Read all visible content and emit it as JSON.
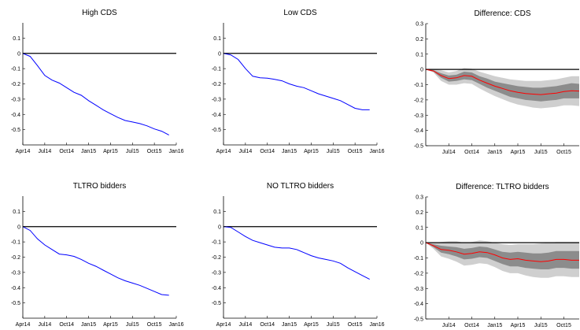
{
  "colors": {
    "line": "#0000ff",
    "diff_line": "#ff0000",
    "band_outer": "#cfcfcf",
    "band_inner": "#8c8c8c",
    "zero_line": "#000000"
  },
  "chart_data": [
    {
      "type": "line",
      "title": "High CDS",
      "x_ticks": [
        "Apr14",
        "Jul14",
        "Oct14",
        "Jan15",
        "Apr15",
        "Jul15",
        "Oct15",
        "Jan16"
      ],
      "y_ticks": [
        "0.1",
        "0",
        "-0.1",
        "-0.2",
        "-0.3",
        "-0.4",
        "-0.5"
      ],
      "ylim": [
        -0.6,
        0.2
      ],
      "x": [
        "Apr14",
        "May14",
        "Jun14",
        "Jul14",
        "Aug14",
        "Sep14",
        "Oct14",
        "Nov14",
        "Dec14",
        "Jan15",
        "Feb15",
        "Mar15",
        "Apr15",
        "May15",
        "Jun15",
        "Jul15",
        "Aug15",
        "Sep15",
        "Oct15",
        "Nov15",
        "Dec15"
      ],
      "series": [
        {
          "values": [
            0,
            -0.02,
            -0.08,
            -0.145,
            -0.175,
            -0.195,
            -0.225,
            -0.255,
            -0.275,
            -0.31,
            -0.34,
            -0.37,
            -0.395,
            -0.42,
            -0.44,
            -0.45,
            -0.46,
            -0.475,
            -0.495,
            -0.51,
            -0.535
          ]
        }
      ]
    },
    {
      "type": "line",
      "title": "Low CDS",
      "x_ticks": [
        "Apr14",
        "Jul14",
        "Oct14",
        "Jan15",
        "Apr15",
        "Jul15",
        "Oct15",
        "Jan16"
      ],
      "y_ticks": [
        "0.1",
        "0",
        "-0.1",
        "-0.2",
        "-0.3",
        "-0.4",
        "-0.5"
      ],
      "ylim": [
        -0.6,
        0.2
      ],
      "x": [
        "Apr14",
        "May14",
        "Jun14",
        "Jul14",
        "Aug14",
        "Sep14",
        "Oct14",
        "Nov14",
        "Dec14",
        "Jan15",
        "Feb15",
        "Mar15",
        "Apr15",
        "May15",
        "Jun15",
        "Jul15",
        "Aug15",
        "Sep15",
        "Oct15",
        "Nov15",
        "Dec15"
      ],
      "series": [
        {
          "values": [
            0,
            -0.01,
            -0.04,
            -0.1,
            -0.15,
            -0.16,
            -0.163,
            -0.17,
            -0.18,
            -0.2,
            -0.215,
            -0.225,
            -0.245,
            -0.265,
            -0.28,
            -0.295,
            -0.31,
            -0.335,
            -0.36,
            -0.37,
            -0.37
          ]
        }
      ]
    },
    {
      "type": "area",
      "title": "Difference: CDS",
      "x_ticks": [
        "Jul14",
        "Oct14",
        "Jan15",
        "Apr15",
        "Jul15",
        "Oct15"
      ],
      "y_ticks": [
        "0.3",
        "0.2",
        "0.1",
        "0",
        "-0.1",
        "-0.2",
        "-0.3",
        "-0.4",
        "-0.5"
      ],
      "ylim": [
        -0.5,
        0.3
      ],
      "x": [
        "Apr14",
        "May14",
        "Jun14",
        "Jul14",
        "Aug14",
        "Sep14",
        "Oct14",
        "Nov14",
        "Dec14",
        "Jan15",
        "Feb15",
        "Mar15",
        "Apr15",
        "May15",
        "Jun15",
        "Jul15",
        "Aug15",
        "Sep15",
        "Oct15",
        "Nov15",
        "Dec15",
        "Jan16"
      ],
      "series": [
        {
          "role": "estimate",
          "values": [
            0,
            -0.01,
            -0.04,
            -0.06,
            -0.055,
            -0.04,
            -0.045,
            -0.07,
            -0.09,
            -0.11,
            -0.125,
            -0.14,
            -0.15,
            -0.158,
            -0.162,
            -0.165,
            -0.16,
            -0.155,
            -0.145,
            -0.14,
            -0.142,
            -0.155
          ]
        },
        {
          "role": "outer_upper",
          "values": [
            0,
            0,
            -0.005,
            -0.02,
            -0.01,
            0.01,
            0.005,
            -0.015,
            -0.03,
            -0.045,
            -0.055,
            -0.065,
            -0.07,
            -0.075,
            -0.075,
            -0.075,
            -0.07,
            -0.065,
            -0.055,
            -0.045,
            -0.045,
            -0.05
          ]
        },
        {
          "role": "inner_upper",
          "values": [
            0,
            -0.005,
            -0.025,
            -0.04,
            -0.035,
            -0.015,
            -0.02,
            -0.045,
            -0.06,
            -0.08,
            -0.09,
            -0.1,
            -0.11,
            -0.115,
            -0.12,
            -0.12,
            -0.115,
            -0.11,
            -0.1,
            -0.09,
            -0.095,
            -0.105
          ]
        },
        {
          "role": "inner_lower",
          "values": [
            0,
            -0.015,
            -0.055,
            -0.08,
            -0.075,
            -0.065,
            -0.07,
            -0.095,
            -0.12,
            -0.14,
            -0.16,
            -0.18,
            -0.19,
            -0.2,
            -0.205,
            -0.21,
            -0.205,
            -0.2,
            -0.19,
            -0.19,
            -0.19,
            -0.205
          ]
        },
        {
          "role": "outer_lower",
          "values": [
            0,
            -0.02,
            -0.075,
            -0.1,
            -0.1,
            -0.09,
            -0.095,
            -0.125,
            -0.15,
            -0.175,
            -0.195,
            -0.215,
            -0.23,
            -0.24,
            -0.25,
            -0.255,
            -0.25,
            -0.245,
            -0.235,
            -0.235,
            -0.24,
            -0.255
          ]
        }
      ]
    },
    {
      "type": "line",
      "title": "TLTRO bidders",
      "x_ticks": [
        "Apr14",
        "Jul14",
        "Oct14",
        "Jan15",
        "Apr15",
        "Jul15",
        "Oct15",
        "Jan16"
      ],
      "y_ticks": [
        "0.1",
        "0",
        "-0.1",
        "-0.2",
        "-0.3",
        "-0.4",
        "-0.5"
      ],
      "ylim": [
        -0.6,
        0.2
      ],
      "x": [
        "Apr14",
        "May14",
        "Jun14",
        "Jul14",
        "Aug14",
        "Sep14",
        "Oct14",
        "Nov14",
        "Dec14",
        "Jan15",
        "Feb15",
        "Mar15",
        "Apr15",
        "May15",
        "Jun15",
        "Jul15",
        "Aug15",
        "Sep15",
        "Oct15",
        "Nov15",
        "Dec15"
      ],
      "series": [
        {
          "values": [
            0,
            -0.025,
            -0.08,
            -0.12,
            -0.15,
            -0.18,
            -0.185,
            -0.195,
            -0.215,
            -0.24,
            -0.26,
            -0.285,
            -0.31,
            -0.335,
            -0.355,
            -0.37,
            -0.385,
            -0.405,
            -0.425,
            -0.445,
            -0.45
          ]
        }
      ]
    },
    {
      "type": "line",
      "title": "NO TLTRO bidders",
      "x_ticks": [
        "Apr14",
        "Jul14",
        "Oct14",
        "Jan15",
        "Apr15",
        "Jul15",
        "Oct15",
        "Jan16"
      ],
      "y_ticks": [
        "0.1",
        "0",
        "-0.1",
        "-0.2",
        "-0.3",
        "-0.4",
        "-0.5"
      ],
      "ylim": [
        -0.6,
        0.2
      ],
      "x": [
        "Apr14",
        "May14",
        "Jun14",
        "Jul14",
        "Aug14",
        "Sep14",
        "Oct14",
        "Nov14",
        "Dec14",
        "Jan15",
        "Feb15",
        "Mar15",
        "Apr15",
        "May15",
        "Jun15",
        "Jul15",
        "Aug15",
        "Sep15",
        "Oct15",
        "Nov15",
        "Dec15"
      ],
      "series": [
        {
          "values": [
            0,
            -0.005,
            -0.035,
            -0.065,
            -0.09,
            -0.105,
            -0.12,
            -0.135,
            -0.14,
            -0.14,
            -0.15,
            -0.17,
            -0.19,
            -0.205,
            -0.215,
            -0.225,
            -0.24,
            -0.27,
            -0.295,
            -0.32,
            -0.345
          ]
        }
      ]
    },
    {
      "type": "area",
      "title": "Difference: TLTRO bidders",
      "x_ticks": [
        "Jul14",
        "Oct14",
        "Jan15",
        "Apr15",
        "Jul15",
        "Oct15"
      ],
      "y_ticks": [
        "0.3",
        "0.2",
        "0.1",
        "0",
        "-0.1",
        "-0.2",
        "-0.3",
        "-0.4",
        "-0.5"
      ],
      "ylim": [
        -0.5,
        0.3
      ],
      "x": [
        "Apr14",
        "May14",
        "Jun14",
        "Jul14",
        "Aug14",
        "Sep14",
        "Oct14",
        "Nov14",
        "Dec14",
        "Jan15",
        "Feb15",
        "Mar15",
        "Apr15",
        "May15",
        "Jun15",
        "Jul15",
        "Aug15",
        "Sep15",
        "Oct15",
        "Nov15",
        "Dec15",
        "Jan16"
      ],
      "series": [
        {
          "role": "estimate",
          "values": [
            0,
            -0.02,
            -0.045,
            -0.05,
            -0.06,
            -0.075,
            -0.07,
            -0.06,
            -0.065,
            -0.08,
            -0.1,
            -0.11,
            -0.105,
            -0.115,
            -0.12,
            -0.125,
            -0.12,
            -0.11,
            -0.11,
            -0.115,
            -0.115,
            -0.112
          ]
        },
        {
          "role": "outer_upper",
          "values": [
            0,
            0,
            0.005,
            0.01,
            0.01,
            0,
            0.005,
            0.015,
            0.01,
            0,
            -0.01,
            -0.015,
            -0.01,
            -0.01,
            -0.01,
            -0.005,
            0,
            0.005,
            0.005,
            0.005,
            0.005,
            0.01
          ]
        },
        {
          "role": "inner_upper",
          "values": [
            0,
            -0.01,
            -0.02,
            -0.025,
            -0.03,
            -0.04,
            -0.035,
            -0.025,
            -0.03,
            -0.045,
            -0.06,
            -0.065,
            -0.06,
            -0.065,
            -0.07,
            -0.07,
            -0.065,
            -0.055,
            -0.055,
            -0.055,
            -0.055,
            -0.055
          ]
        },
        {
          "role": "inner_lower",
          "values": [
            0,
            -0.03,
            -0.065,
            -0.075,
            -0.09,
            -0.11,
            -0.105,
            -0.095,
            -0.1,
            -0.12,
            -0.14,
            -0.155,
            -0.155,
            -0.165,
            -0.17,
            -0.175,
            -0.175,
            -0.165,
            -0.165,
            -0.17,
            -0.17,
            -0.17
          ]
        },
        {
          "role": "outer_lower",
          "values": [
            0,
            -0.04,
            -0.09,
            -0.105,
            -0.125,
            -0.15,
            -0.145,
            -0.135,
            -0.14,
            -0.16,
            -0.185,
            -0.2,
            -0.2,
            -0.215,
            -0.225,
            -0.23,
            -0.23,
            -0.22,
            -0.22,
            -0.225,
            -0.225,
            -0.23
          ]
        }
      ]
    }
  ]
}
